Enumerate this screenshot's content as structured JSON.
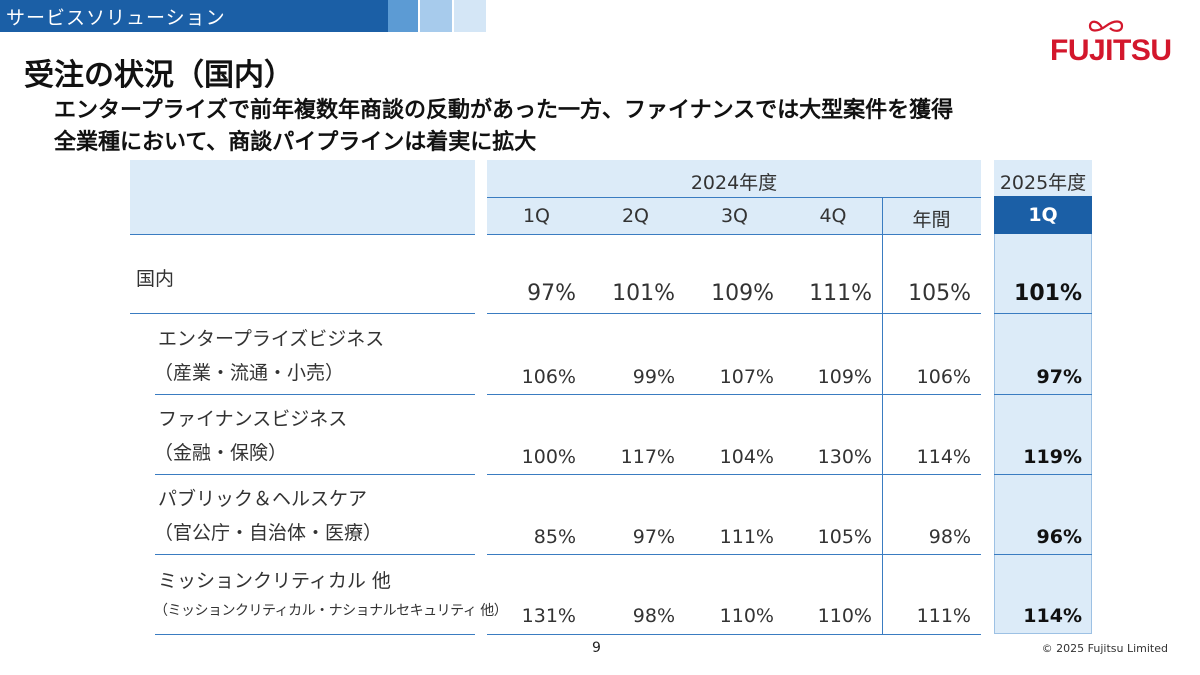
{
  "header": {
    "section_label": "サービスソリューション",
    "logo_text": "FUJITSU",
    "brand_color": "#d3172c",
    "accent_color": "#1b5fa6"
  },
  "title": "受注の状況（国内）",
  "subtitles": [
    "エンタープライズで前年複数年商談の反動があった一方、ファイナンスでは大型案件を獲得",
    "全業種において、商談パイプラインは着実に拡大"
  ],
  "table": {
    "fy2024_label": "2024年度",
    "fy2025_label": "2025年度",
    "columns": [
      "1Q",
      "2Q",
      "3Q",
      "4Q",
      "年間"
    ],
    "fy2025_column": "1Q",
    "rows": [
      {
        "label1": "国内",
        "label2": "",
        "values": [
          "97%",
          "101%",
          "109%",
          "111%",
          "105%"
        ],
        "fy2025": "101%"
      },
      {
        "label1": "エンタープライズビジネス",
        "label2": "（産業・流通・小売）",
        "values": [
          "106%",
          "99%",
          "107%",
          "109%",
          "106%"
        ],
        "fy2025": "97%"
      },
      {
        "label1": "ファイナンスビジネス",
        "label2": "（金融・保険）",
        "values": [
          "100%",
          "117%",
          "104%",
          "130%",
          "114%"
        ],
        "fy2025": "119%"
      },
      {
        "label1": "パブリック＆ヘルスケア",
        "label2": "（官公庁・自治体・医療）",
        "values": [
          "85%",
          "97%",
          "111%",
          "105%",
          "98%"
        ],
        "fy2025": "96%"
      },
      {
        "label1": "ミッションクリティカル 他",
        "label2": "（ミッションクリティカル・ナショナルセキュリティ 他）",
        "values": [
          "131%",
          "98%",
          "110%",
          "110%",
          "111%"
        ],
        "fy2025": "114%"
      }
    ]
  },
  "footer": {
    "page_number": "9",
    "copyright": "© 2025 Fujitsu Limited"
  }
}
